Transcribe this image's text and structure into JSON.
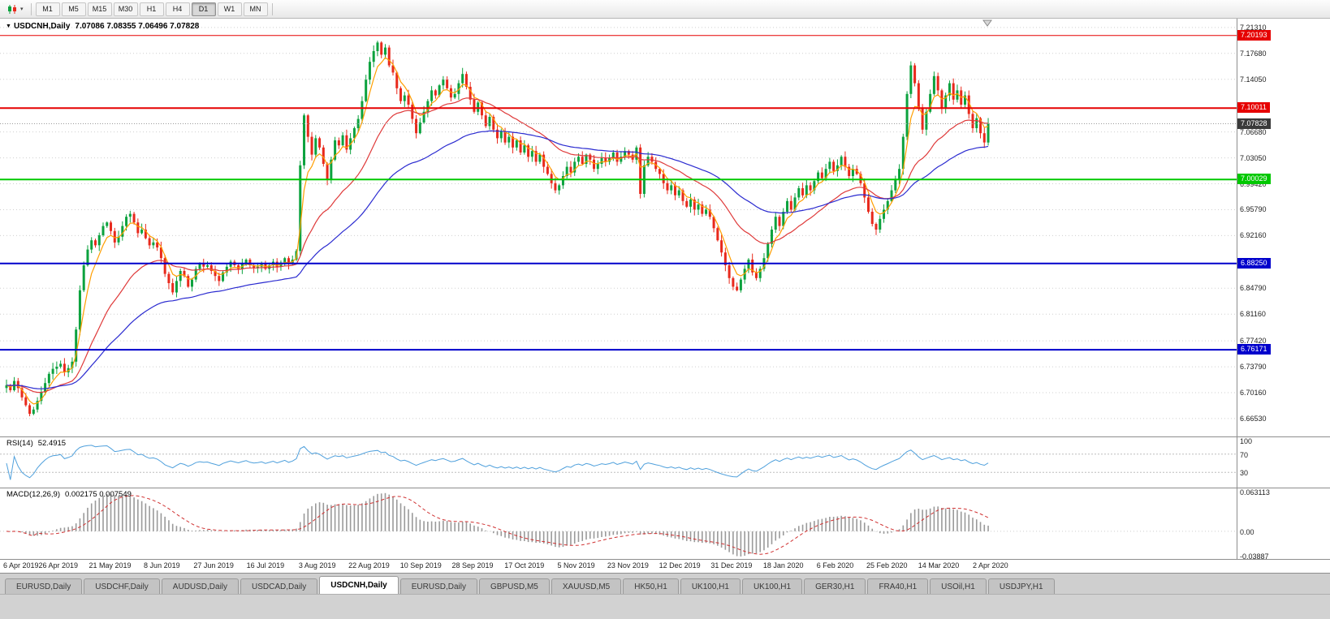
{
  "toolbar": {
    "dropdown_caret": "▾",
    "timeframes": [
      "M1",
      "M5",
      "M15",
      "M30",
      "H1",
      "H4",
      "D1",
      "W1",
      "MN"
    ],
    "active_timeframe": "D1"
  },
  "chart": {
    "collapse_icon": "▼",
    "symbol_title": "USDCNH,Daily",
    "ohlc": "7.07086 7.08355 7.06496 7.07828",
    "axis_labels": [
      "7.21310",
      "7.17680",
      "7.14050",
      "7.06680",
      "7.03050",
      "6.99420",
      "6.95790",
      "6.92160",
      "6.84790",
      "6.81160",
      "6.77420",
      "6.73790",
      "6.70160",
      "6.66530"
    ],
    "levels": [
      {
        "label": "7.20193",
        "price": 7.20193,
        "color": "#E60000",
        "width": 1
      },
      {
        "label": "7.10011",
        "price": 7.10011,
        "color": "#E60000",
        "width": 2
      },
      {
        "label": "7.00029",
        "price": 7.00029,
        "color": "#00C800",
        "width": 2
      },
      {
        "label": "6.88250",
        "price": 6.8825,
        "color": "#0000CC",
        "width": 2
      },
      {
        "label": "6.76171",
        "price": 6.76171,
        "color": "#0000CC",
        "width": 2
      }
    ],
    "current_price": {
      "label": "7.07828",
      "value": 7.07828,
      "tag_color": "#3A3A3A"
    }
  },
  "chart_data": {
    "type": "candlestick",
    "symbol": "USDCNH",
    "timeframe": "Daily",
    "ylim": [
      6.6653,
      7.2131
    ],
    "x_labels": [
      "6 Apr 2019",
      "26 Apr 2019",
      "21 May 2019",
      "8 Jun 2019",
      "27 Jun 2019",
      "16 Jul 2019",
      "3 Aug 2019",
      "22 Aug 2019",
      "10 Sep 2019",
      "28 Sep 2019",
      "17 Oct 2019",
      "5 Nov 2019",
      "23 Nov 2019",
      "12 Dec 2019",
      "31 Dec 2019",
      "18 Jan 2020",
      "6 Feb 2020",
      "25 Feb 2020",
      "14 Mar 2020",
      "2 Apr 2020"
    ],
    "closes": [
      6.712,
      6.705,
      6.718,
      6.708,
      6.695,
      6.684,
      6.672,
      6.678,
      6.69,
      6.702,
      6.715,
      6.728,
      6.735,
      6.738,
      6.742,
      6.73,
      6.736,
      6.745,
      6.79,
      6.845,
      6.88,
      6.902,
      6.915,
      6.908,
      6.922,
      6.935,
      6.94,
      6.928,
      6.912,
      6.92,
      6.935,
      6.948,
      6.952,
      6.94,
      6.925,
      6.93,
      6.918,
      6.908,
      6.912,
      6.905,
      6.89,
      6.868,
      6.855,
      6.842,
      6.858,
      6.872,
      6.865,
      6.85,
      6.86,
      6.875,
      6.882,
      6.878,
      6.88,
      6.872,
      6.865,
      6.858,
      6.87,
      6.878,
      6.885,
      6.88,
      6.875,
      6.882,
      6.888,
      6.88,
      6.876,
      6.878,
      6.882,
      6.875,
      6.88,
      6.885,
      6.878,
      6.884,
      6.89,
      6.882,
      6.888,
      6.9,
      7.02,
      7.09,
      7.06,
      7.035,
      7.058,
      7.045,
      7.022,
      7.0,
      7.028,
      7.055,
      7.048,
      7.062,
      7.042,
      7.058,
      7.072,
      7.085,
      7.11,
      7.14,
      7.165,
      7.18,
      7.192,
      7.175,
      7.185,
      7.16,
      7.15,
      7.128,
      7.11,
      7.118,
      7.105,
      7.085,
      7.065,
      7.08,
      7.095,
      7.11,
      7.125,
      7.118,
      7.132,
      7.14,
      7.128,
      7.115,
      7.12,
      7.135,
      7.148,
      7.13,
      7.112,
      7.095,
      7.108,
      7.09,
      7.075,
      7.088,
      7.07,
      7.058,
      7.068,
      7.052,
      7.06,
      7.045,
      7.055,
      7.038,
      7.048,
      7.032,
      7.04,
      7.025,
      7.035,
      7.018,
      7.008,
      6.995,
      6.985,
      6.992,
      7.005,
      7.018,
      7.01,
      7.025,
      7.032,
      7.022,
      7.035,
      7.028,
      7.015,
      7.022,
      7.03,
      7.025,
      7.03,
      7.038,
      7.025,
      7.032,
      7.04,
      7.035,
      7.028,
      7.045,
      6.98,
      7.02,
      7.032,
      7.025,
      7.015,
      7.008,
      6.995,
      6.985,
      6.992,
      6.978,
      6.985,
      6.97,
      6.962,
      6.972,
      6.958,
      6.965,
      6.952,
      6.958,
      6.948,
      6.932,
      6.915,
      6.898,
      6.88,
      6.862,
      6.85,
      6.845,
      6.86,
      6.875,
      6.888,
      6.87,
      6.862,
      6.875,
      6.89,
      6.91,
      6.93,
      6.948,
      6.935,
      6.955,
      6.97,
      6.958,
      6.975,
      6.988,
      6.978,
      6.992,
      6.985,
      6.998,
      7.01,
      7.002,
      7.015,
      7.025,
      7.012,
      7.02,
      7.032,
      7.018,
      7.005,
      7.015,
      7.008,
      6.995,
      6.975,
      6.955,
      6.938,
      6.93,
      6.945,
      6.958,
      6.97,
      6.985,
      7.0,
      7.015,
      7.06,
      7.12,
      7.16,
      7.135,
      7.1,
      7.07,
      7.095,
      7.12,
      7.145,
      7.125,
      7.1,
      7.118,
      7.135,
      7.112,
      7.125,
      7.105,
      7.118,
      7.092,
      7.072,
      7.086,
      7.065,
      7.052,
      7.078
    ],
    "moving_averages": [
      {
        "name": "fast-ma",
        "period": 5,
        "color": "#FF9E00"
      },
      {
        "name": "medium-ma",
        "period": 24,
        "color": "#DF3A3A"
      },
      {
        "name": "slow-ma",
        "period": 55,
        "color": "#2B2BD0"
      }
    ],
    "bull_color": "#0CA23E",
    "bear_color": "#E8291C"
  },
  "rsi": {
    "name": "RSI(14)",
    "value": "52.4915",
    "period": 14,
    "axis_labels": [
      "100",
      "70",
      "30"
    ],
    "levels": [
      70,
      30
    ],
    "color": "#4FA0DC"
  },
  "macd": {
    "name": "MACD(12,26,9)",
    "values": "0.002175 0.007549",
    "fast": 12,
    "slow": 26,
    "signal_period": 9,
    "axis_labels": [
      "0.063113",
      "0.00",
      "-0.03887"
    ],
    "axis_top": 0.063113,
    "axis_bottom": -0.03887,
    "bar_color": "#9A9A9A",
    "signal_color": "#D03030"
  },
  "tabs": [
    "EURUSD,Daily",
    "USDCHF,Daily",
    "AUDUSD,Daily",
    "USDCAD,Daily",
    "USDCNH,Daily",
    "EURUSD,Daily",
    "GBPUSD,M5",
    "XAUUSD,M5",
    "HK50,H1",
    "UK100,H1",
    "UK100,H1",
    "GER30,H1",
    "FRA40,H1",
    "USOil,H1",
    "USDJPY,H1"
  ],
  "active_tab_index": 4
}
